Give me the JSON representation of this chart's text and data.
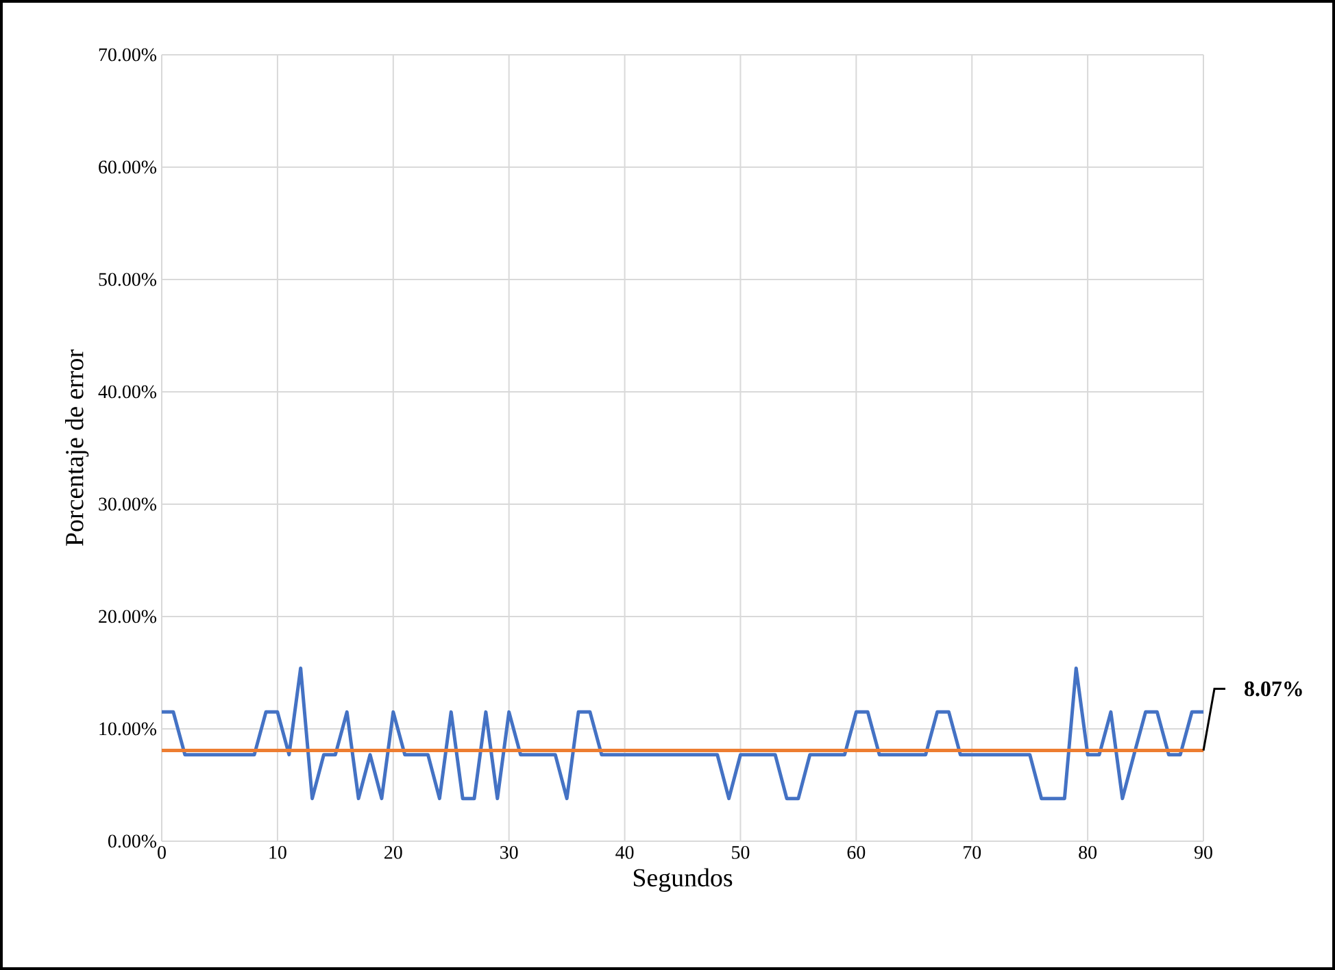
{
  "chart_data": {
    "type": "line",
    "xlabel": "Segundos",
    "ylabel": "Porcentaje de error",
    "x": [
      0,
      1,
      2,
      3,
      4,
      5,
      6,
      7,
      8,
      9,
      10,
      11,
      12,
      13,
      14,
      15,
      16,
      17,
      18,
      19,
      20,
      21,
      22,
      23,
      24,
      25,
      26,
      27,
      28,
      29,
      30,
      31,
      32,
      33,
      34,
      35,
      36,
      37,
      38,
      39,
      40,
      41,
      42,
      43,
      44,
      45,
      46,
      47,
      48,
      49,
      50,
      51,
      52,
      53,
      54,
      55,
      56,
      57,
      58,
      59,
      60,
      61,
      62,
      63,
      64,
      65,
      66,
      67,
      68,
      69,
      70,
      71,
      72,
      73,
      74,
      75,
      76,
      77,
      78,
      79,
      80,
      81,
      82,
      83,
      84,
      85,
      86,
      87,
      88,
      89,
      90
    ],
    "series": [
      {
        "color": "#4472c4",
        "values": [
          11.5,
          11.5,
          7.7,
          7.7,
          7.7,
          7.7,
          7.7,
          7.7,
          7.7,
          11.5,
          11.5,
          7.7,
          15.4,
          3.8,
          7.7,
          7.7,
          11.5,
          3.8,
          7.7,
          3.8,
          11.5,
          7.7,
          7.7,
          7.7,
          3.8,
          11.5,
          3.8,
          3.8,
          11.5,
          3.8,
          11.5,
          7.7,
          7.7,
          7.7,
          7.7,
          3.8,
          11.5,
          11.5,
          7.7,
          7.7,
          7.7,
          7.7,
          7.7,
          7.7,
          7.7,
          7.7,
          7.7,
          7.7,
          7.7,
          3.8,
          7.7,
          7.7,
          7.7,
          7.7,
          3.8,
          3.8,
          7.7,
          7.7,
          7.7,
          7.7,
          11.5,
          11.5,
          7.7,
          7.7,
          7.7,
          7.7,
          7.7,
          11.5,
          11.5,
          7.7,
          7.7,
          7.7,
          7.7,
          7.7,
          7.7,
          7.7,
          3.8,
          3.8,
          3.8,
          15.4,
          7.7,
          7.7,
          11.5,
          3.8,
          7.7,
          11.5,
          11.5,
          7.7,
          7.7,
          11.5,
          11.5
        ]
      }
    ],
    "ref_lines": [
      {
        "axis": "y",
        "value": 8.07,
        "label": "8.07%",
        "color": "#ed7d31"
      }
    ],
    "xlim": [
      0,
      90
    ],
    "xticks": [
      0,
      10,
      20,
      30,
      40,
      50,
      60,
      70,
      80,
      90
    ],
    "ylim": [
      0,
      70
    ],
    "yticks": [
      {
        "value": 0,
        "label": "0.00%"
      },
      {
        "value": 10,
        "label": "10.00%"
      },
      {
        "value": 20,
        "label": "20.00%"
      },
      {
        "value": 30,
        "label": "30.00%"
      },
      {
        "value": 40,
        "label": "40.00%"
      },
      {
        "value": 50,
        "label": "50.00%"
      },
      {
        "value": 60,
        "label": "60.00%"
      },
      {
        "value": 70,
        "label": "70.00%"
      }
    ],
    "grid": true,
    "marker": "none",
    "line_style": "solid"
  }
}
